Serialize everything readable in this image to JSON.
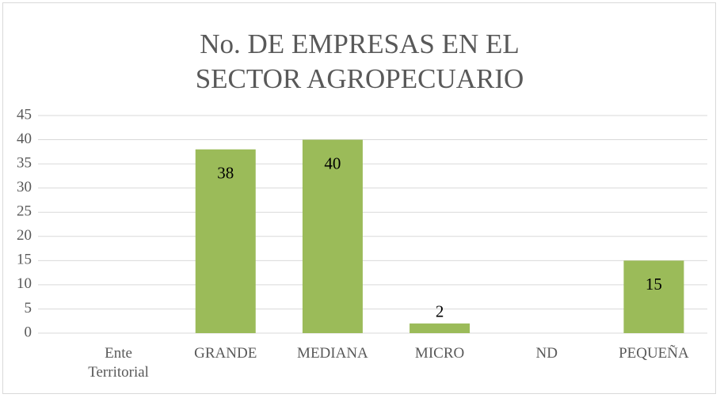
{
  "chart_data": {
    "type": "bar",
    "title": "No. DE EMPRESAS EN EL SECTOR AGROPECUARIO",
    "categories": [
      "Ente Territorial",
      "GRANDE",
      "MEDIANA",
      "MICRO",
      "ND",
      "PEQUEÑA"
    ],
    "values": [
      null,
      38,
      40,
      2,
      null,
      15
    ],
    "color": "#9bbb59",
    "ylim": [
      0,
      45
    ],
    "yticks": [
      0,
      5,
      10,
      15,
      20,
      25,
      30,
      35,
      40,
      45
    ],
    "grid": true
  }
}
